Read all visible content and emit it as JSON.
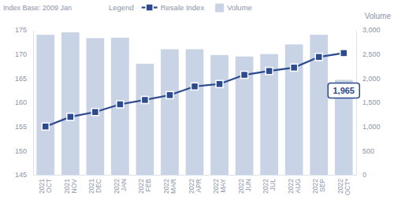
{
  "chart_data": {
    "type": "bar",
    "subtitle": "Index Base: 2009 Jan",
    "legend_title": "Legend",
    "y2_label": "Volume",
    "legend": "top",
    "categories": [
      "2021 OCT",
      "2021 NOV",
      "2021 DEC",
      "2022 JAN",
      "2022 FEB",
      "2022 MAR",
      "2022 APR",
      "2022 MAY",
      "2022 JUN",
      "2022 JUL",
      "2022 AUG",
      "2022 SEP",
      "2022 OCT*"
    ],
    "series": [
      {
        "name": "Resale Index",
        "type": "line",
        "color": "#2c4a8e",
        "marker": "square",
        "values": [
          155.0,
          157.0,
          158.0,
          159.6,
          160.5,
          161.5,
          163.3,
          163.8,
          165.7,
          166.5,
          167.2,
          169.4,
          170.2
        ]
      },
      {
        "name": "Volume",
        "type": "bar",
        "axis": "y2",
        "color": "#c9d3e6",
        "values": [
          2900,
          2950,
          2830,
          2840,
          2300,
          2600,
          2600,
          2480,
          2450,
          2500,
          2700,
          2900,
          1965
        ],
        "value_labels": [
          null,
          null,
          null,
          null,
          null,
          null,
          null,
          null,
          null,
          null,
          null,
          null,
          "1,965"
        ]
      }
    ],
    "ylim": [
      145,
      175
    ],
    "yticks": [
      145,
      150,
      155,
      160,
      165,
      170,
      175
    ],
    "y2lim": [
      0,
      3000
    ],
    "y2ticks": [
      0,
      500,
      {
        "value": 1000,
        "label": "1,000"
      },
      {
        "value": 1500,
        "label": "1,500"
      },
      {
        "value": 2000,
        "label": "2,000"
      },
      {
        "value": 2500,
        "label": "2,500"
      },
      {
        "value": 3000,
        "label": "3,000"
      }
    ]
  }
}
